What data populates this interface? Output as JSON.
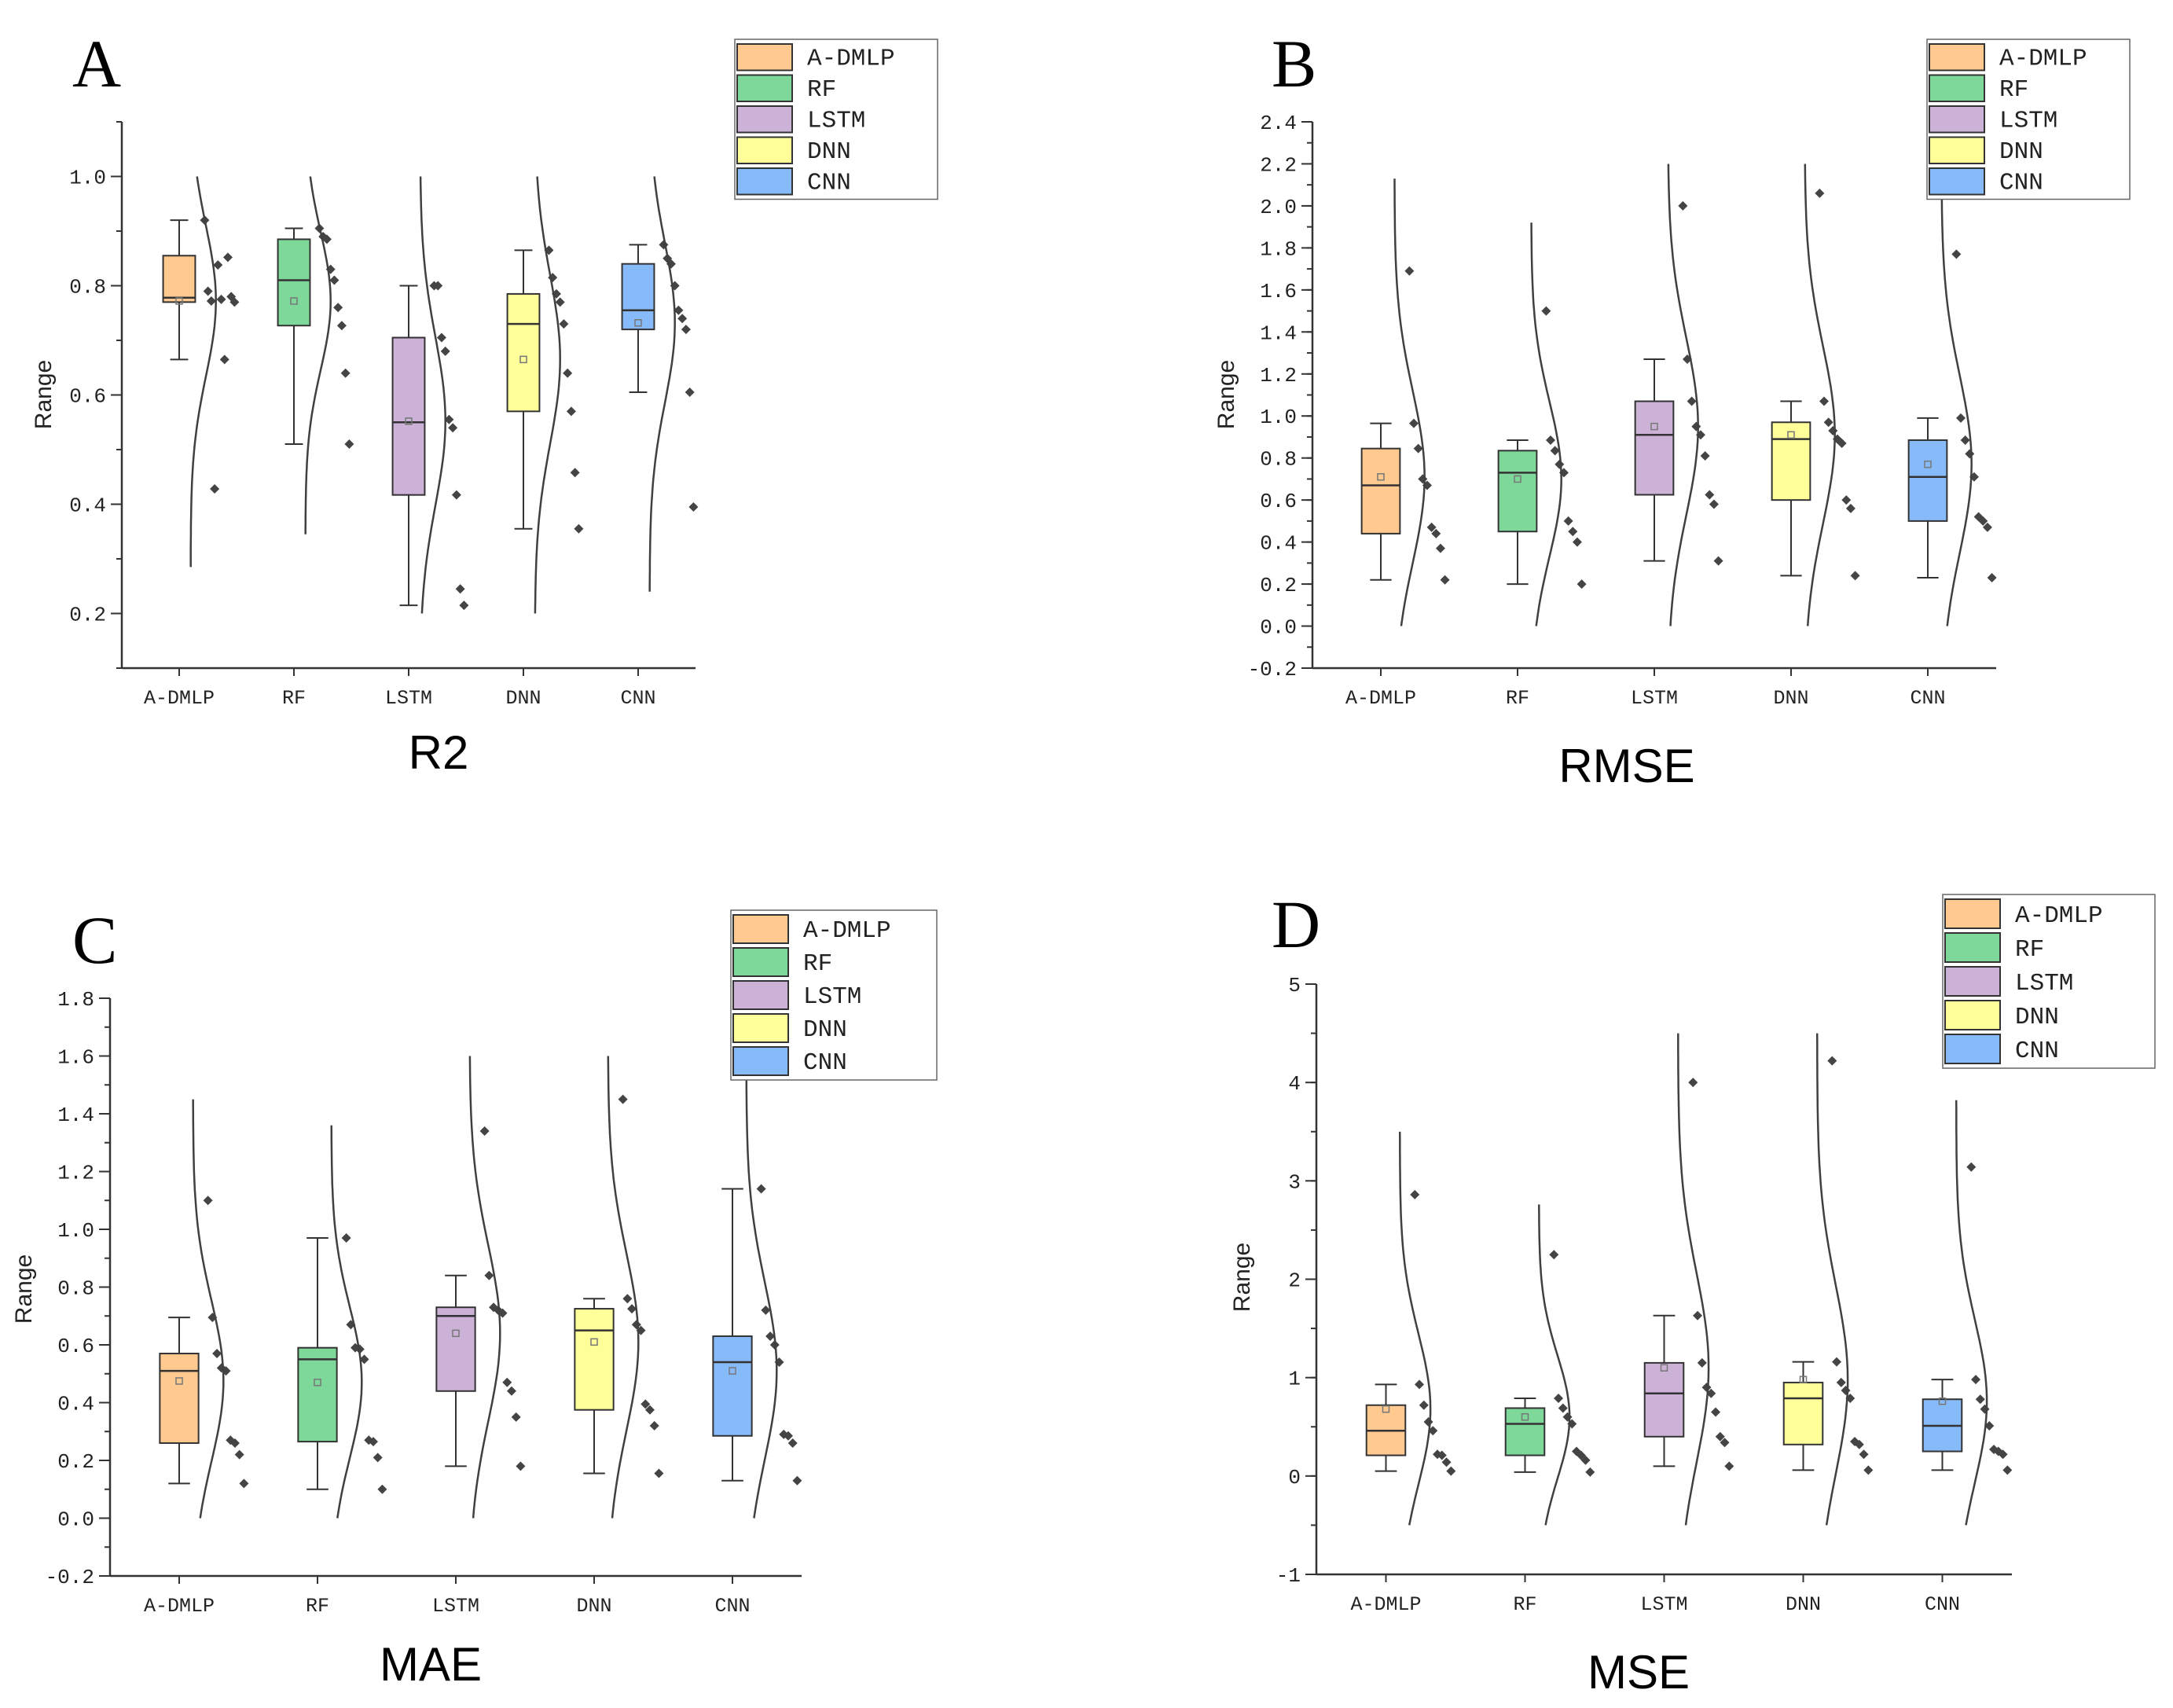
{
  "colors": {
    "A-DMLP": "#FFC98F",
    "RF": "#7DD89A",
    "LSTM": "#CDB2D8",
    "DNN": "#FFFF9A",
    "CNN": "#86BAF8",
    "axis": "#333333",
    "points": "#444444",
    "curve": "#404040"
  },
  "chart_data": [
    {
      "panel": "A",
      "title": "R2",
      "type": "box",
      "ylabel": "Range",
      "ylim": [
        0.1,
        1.1
      ],
      "yticks": [
        "0.2",
        "0.4",
        "0.6",
        "0.8",
        "1.0"
      ],
      "yminor_step": 0.1,
      "legend": [
        "A-DMLP",
        "RF",
        "LSTM",
        "DNN",
        "CNN"
      ],
      "legend_position": "top-right",
      "categories": [
        "A-DMLP",
        "RF",
        "LSTM",
        "DNN",
        "CNN"
      ],
      "series": [
        {
          "name": "A-DMLP",
          "min": 0.665,
          "q1": 0.77,
          "median": 0.778,
          "q3": 0.855,
          "max": 0.92,
          "mean": 0.772,
          "points": [
            0.92,
            0.852,
            0.838,
            0.79,
            0.78,
            0.775,
            0.772,
            0.77,
            0.665,
            0.428
          ],
          "curve": [
            0.285,
            1.0
          ]
        },
        {
          "name": "RF",
          "min": 0.51,
          "q1": 0.727,
          "median": 0.81,
          "q3": 0.885,
          "max": 0.905,
          "mean": 0.772,
          "points": [
            0.905,
            0.89,
            0.885,
            0.83,
            0.81,
            0.76,
            0.727,
            0.64,
            0.51
          ],
          "curve": [
            0.345,
            1.0
          ]
        },
        {
          "name": "LSTM",
          "min": 0.215,
          "q1": 0.417,
          "median": 0.55,
          "q3": 0.705,
          "max": 0.8,
          "mean": 0.552,
          "points": [
            0.8,
            0.8,
            0.705,
            0.68,
            0.555,
            0.54,
            0.417,
            0.245,
            0.215
          ],
          "curve": [
            0.2,
            1.0
          ]
        },
        {
          "name": "DNN",
          "min": 0.355,
          "q1": 0.57,
          "median": 0.73,
          "q3": 0.785,
          "max": 0.865,
          "mean": 0.665,
          "points": [
            0.865,
            0.815,
            0.785,
            0.77,
            0.73,
            0.64,
            0.57,
            0.458,
            0.355
          ],
          "curve": [
            0.2,
            1.0
          ]
        },
        {
          "name": "CNN",
          "min": 0.605,
          "q1": 0.72,
          "median": 0.755,
          "q3": 0.84,
          "max": 0.875,
          "mean": 0.732,
          "points": [
            0.875,
            0.85,
            0.84,
            0.8,
            0.755,
            0.74,
            0.72,
            0.605,
            0.395
          ],
          "curve": [
            0.24,
            1.0
          ]
        }
      ]
    },
    {
      "panel": "B",
      "title": "RMSE",
      "type": "box",
      "ylabel": "Range",
      "ylim": [
        -0.2,
        2.4
      ],
      "yticks": [
        "-0.2",
        "0.0",
        "0.2",
        "0.4",
        "0.6",
        "0.8",
        "1.0",
        "1.2",
        "1.4",
        "1.6",
        "1.8",
        "2.0",
        "2.2",
        "2.4"
      ],
      "yminor_step": 0.1,
      "legend": [
        "A-DMLP",
        "RF",
        "LSTM",
        "DNN",
        "CNN"
      ],
      "legend_position": "top-right",
      "categories": [
        "A-DMLP",
        "RF",
        "LSTM",
        "DNN",
        "CNN"
      ],
      "series": [
        {
          "name": "A-DMLP",
          "min": 0.22,
          "q1": 0.44,
          "median": 0.67,
          "q3": 0.845,
          "max": 0.965,
          "mean": 0.71,
          "points": [
            1.69,
            0.965,
            0.845,
            0.7,
            0.67,
            0.47,
            0.44,
            0.37,
            0.22
          ],
          "curve": [
            0.0,
            2.13
          ]
        },
        {
          "name": "RF",
          "min": 0.2,
          "q1": 0.45,
          "median": 0.73,
          "q3": 0.835,
          "max": 0.885,
          "mean": 0.7,
          "points": [
            1.5,
            0.885,
            0.835,
            0.77,
            0.73,
            0.5,
            0.45,
            0.4,
            0.2
          ],
          "curve": [
            0.0,
            1.92
          ]
        },
        {
          "name": "LSTM",
          "min": 0.31,
          "q1": 0.625,
          "median": 0.91,
          "q3": 1.07,
          "max": 1.27,
          "mean": 0.95,
          "points": [
            2.0,
            1.27,
            1.07,
            0.95,
            0.91,
            0.81,
            0.625,
            0.58,
            0.31
          ],
          "curve": [
            0.0,
            2.2
          ]
        },
        {
          "name": "DNN",
          "min": 0.24,
          "q1": 0.6,
          "median": 0.89,
          "q3": 0.97,
          "max": 1.07,
          "mean": 0.91,
          "points": [
            2.06,
            1.07,
            0.97,
            0.93,
            0.89,
            0.87,
            0.6,
            0.56,
            0.24
          ],
          "curve": [
            0.0,
            2.2
          ]
        },
        {
          "name": "CNN",
          "min": 0.23,
          "q1": 0.5,
          "median": 0.71,
          "q3": 0.885,
          "max": 0.99,
          "mean": 0.77,
          "points": [
            1.77,
            0.99,
            0.885,
            0.82,
            0.71,
            0.52,
            0.5,
            0.47,
            0.23
          ],
          "curve": [
            0.0,
            2.2
          ]
        }
      ]
    },
    {
      "panel": "C",
      "title": "MAE",
      "type": "box",
      "ylabel": "Range",
      "ylim": [
        -0.2,
        1.8
      ],
      "yticks": [
        "-0.2",
        "0.0",
        "0.2",
        "0.4",
        "0.6",
        "0.8",
        "1.0",
        "1.2",
        "1.4",
        "1.6",
        "1.8"
      ],
      "yminor_step": 0.1,
      "legend": [
        "A-DMLP",
        "RF",
        "LSTM",
        "DNN",
        "CNN"
      ],
      "legend_position": "top-right",
      "categories": [
        "A-DMLP",
        "RF",
        "LSTM",
        "DNN",
        "CNN"
      ],
      "series": [
        {
          "name": "A-DMLP",
          "min": 0.12,
          "q1": 0.26,
          "median": 0.51,
          "q3": 0.57,
          "max": 0.695,
          "mean": 0.475,
          "points": [
            1.1,
            0.695,
            0.57,
            0.52,
            0.51,
            0.27,
            0.26,
            0.22,
            0.12
          ],
          "curve": [
            0.0,
            1.45
          ]
        },
        {
          "name": "RF",
          "min": 0.1,
          "q1": 0.265,
          "median": 0.55,
          "q3": 0.59,
          "max": 0.97,
          "mean": 0.47,
          "points": [
            0.97,
            0.67,
            0.59,
            0.585,
            0.55,
            0.27,
            0.265,
            0.21,
            0.1
          ],
          "curve": [
            0.0,
            1.36
          ]
        },
        {
          "name": "LSTM",
          "min": 0.18,
          "q1": 0.44,
          "median": 0.7,
          "q3": 0.73,
          "max": 0.84,
          "mean": 0.64,
          "points": [
            1.34,
            0.84,
            0.73,
            0.72,
            0.71,
            0.47,
            0.44,
            0.35,
            0.18
          ],
          "curve": [
            0.0,
            1.6
          ]
        },
        {
          "name": "DNN",
          "min": 0.155,
          "q1": 0.375,
          "median": 0.65,
          "q3": 0.725,
          "max": 0.76,
          "mean": 0.61,
          "points": [
            1.45,
            0.76,
            0.725,
            0.67,
            0.65,
            0.395,
            0.375,
            0.32,
            0.155
          ],
          "curve": [
            0.0,
            1.6
          ]
        },
        {
          "name": "CNN",
          "min": 0.13,
          "q1": 0.285,
          "median": 0.54,
          "q3": 0.63,
          "max": 1.14,
          "mean": 0.51,
          "points": [
            1.14,
            0.72,
            0.63,
            0.6,
            0.54,
            0.29,
            0.285,
            0.26,
            0.13
          ],
          "curve": [
            0.0,
            1.6
          ]
        }
      ]
    },
    {
      "panel": "D",
      "title": "MSE",
      "type": "box",
      "ylabel": "Range",
      "ylim": [
        -1,
        5
      ],
      "yticks": [
        "-1",
        "0",
        "1",
        "2",
        "3",
        "4",
        "5"
      ],
      "yminor_step": 0.5,
      "legend": [
        "A-DMLP",
        "RF",
        "LSTM",
        "DNN",
        "CNN"
      ],
      "legend_position": "top-right",
      "categories": [
        "A-DMLP",
        "RF",
        "LSTM",
        "DNN",
        "CNN"
      ],
      "series": [
        {
          "name": "A-DMLP",
          "min": 0.05,
          "q1": 0.21,
          "median": 0.46,
          "q3": 0.72,
          "max": 0.93,
          "mean": 0.68,
          "points": [
            2.86,
            0.93,
            0.72,
            0.55,
            0.46,
            0.22,
            0.21,
            0.14,
            0.05
          ],
          "curve": [
            -0.5,
            3.5
          ]
        },
        {
          "name": "RF",
          "min": 0.04,
          "q1": 0.21,
          "median": 0.53,
          "q3": 0.69,
          "max": 0.79,
          "mean": 0.6,
          "points": [
            2.25,
            0.79,
            0.69,
            0.6,
            0.53,
            0.25,
            0.21,
            0.16,
            0.04
          ],
          "curve": [
            -0.5,
            2.76
          ]
        },
        {
          "name": "LSTM",
          "min": 0.1,
          "q1": 0.4,
          "median": 0.84,
          "q3": 1.15,
          "max": 1.63,
          "mean": 1.1,
          "points": [
            4.0,
            1.63,
            1.15,
            0.9,
            0.84,
            0.65,
            0.4,
            0.34,
            0.1
          ],
          "curve": [
            -0.5,
            4.5
          ]
        },
        {
          "name": "DNN",
          "min": 0.06,
          "q1": 0.32,
          "median": 0.79,
          "q3": 0.95,
          "max": 1.16,
          "mean": 0.98,
          "points": [
            4.22,
            1.16,
            0.95,
            0.87,
            0.79,
            0.35,
            0.32,
            0.22,
            0.06
          ],
          "curve": [
            -0.5,
            4.5
          ]
        },
        {
          "name": "CNN",
          "min": 0.06,
          "q1": 0.25,
          "median": 0.51,
          "q3": 0.78,
          "max": 0.98,
          "mean": 0.76,
          "points": [
            3.14,
            0.98,
            0.78,
            0.68,
            0.51,
            0.27,
            0.25,
            0.22,
            0.06
          ],
          "curve": [
            -0.5,
            3.82
          ]
        }
      ]
    }
  ]
}
